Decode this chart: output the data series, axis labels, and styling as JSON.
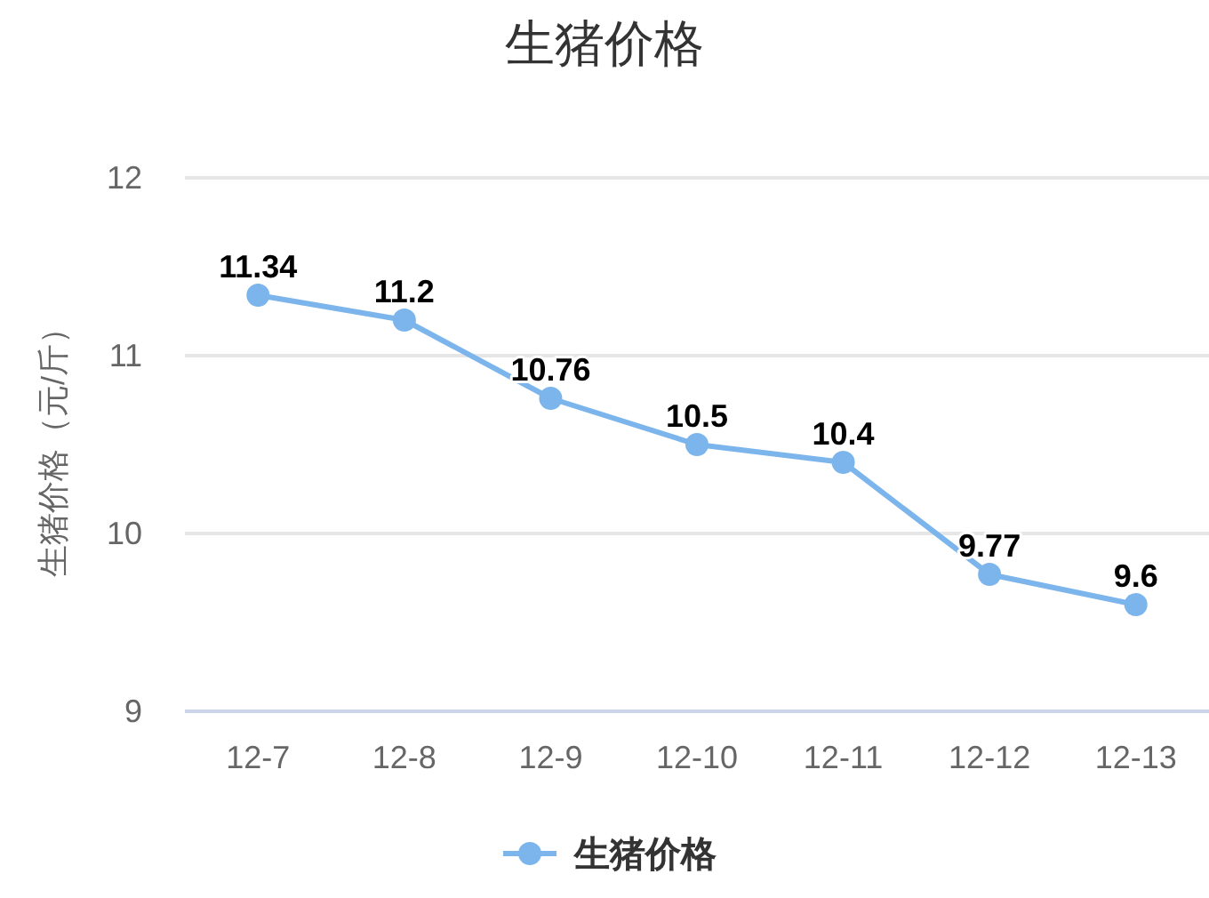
{
  "chart_data": {
    "type": "line",
    "title": "生猪价格",
    "ylabel": "生猪价格（元/斤）",
    "categories": [
      "12-7",
      "12-8",
      "12-9",
      "12-10",
      "12-11",
      "12-12",
      "12-13"
    ],
    "series": [
      {
        "name": "生猪价格",
        "color": "#7cb5ec",
        "values": [
          11.34,
          11.2,
          10.76,
          10.5,
          10.4,
          9.77,
          9.6
        ]
      }
    ],
    "ylim": [
      9,
      12
    ],
    "yticks": [
      9,
      10,
      11,
      12
    ],
    "grid": "y",
    "legend": "bottom",
    "marker": "circle",
    "data_labels": true
  }
}
